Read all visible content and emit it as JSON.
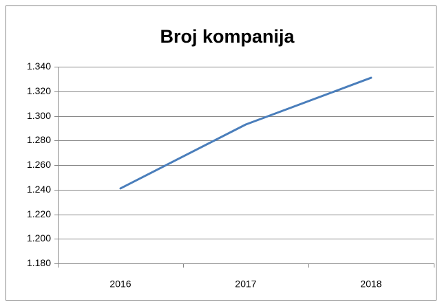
{
  "chart_data": {
    "type": "line",
    "title": "Broj kompanija",
    "categories": [
      "2016",
      "2017",
      "2018"
    ],
    "series": [
      {
        "name": "Broj kompanija",
        "color": "#4a7ebb",
        "values": [
          1241,
          1293,
          1331
        ]
      }
    ],
    "ylim": [
      1180,
      1340
    ],
    "yticks": [
      {
        "value": 1180,
        "label": "1.180"
      },
      {
        "value": 1200,
        "label": "1.200"
      },
      {
        "value": 1220,
        "label": "1.220"
      },
      {
        "value": 1240,
        "label": "1.240"
      },
      {
        "value": 1260,
        "label": "1.260"
      },
      {
        "value": 1280,
        "label": "1.280"
      },
      {
        "value": 1300,
        "label": "1.300"
      },
      {
        "value": 1320,
        "label": "1.320"
      },
      {
        "value": 1340,
        "label": "1.340"
      }
    ],
    "grid": true
  }
}
